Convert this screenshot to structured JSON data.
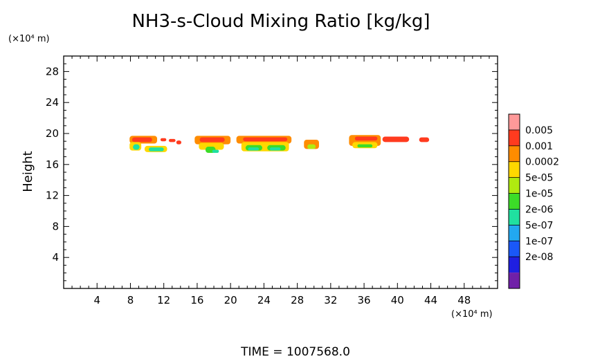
{
  "chart_data": {
    "type": "heatmap",
    "title": "NH3-s-Cloud Mixing Ratio [kg/kg]",
    "ylabel": "Height",
    "x_unit": "(×10⁴ m)",
    "y_unit": "(×10⁴ m)",
    "xlim": [
      0,
      52
    ],
    "ylim": [
      0,
      30
    ],
    "x_ticks": [
      4,
      8,
      12,
      16,
      20,
      24,
      28,
      32,
      36,
      40,
      44,
      48
    ],
    "y_ticks": [
      4,
      8,
      12,
      16,
      20,
      24,
      28
    ],
    "x_minor_step": 1,
    "y_minor_step": 1,
    "footer": "TIME  =  1007568.0",
    "colorbar": {
      "labels": [
        "0.005",
        "0.001",
        "0.0002",
        "5e-05",
        "1e-05",
        "2e-06",
        "5e-07",
        "1e-07",
        "2e-08"
      ],
      "colors": [
        "#ff9999",
        "#ff3b1f",
        "#ff8c00",
        "#ffd800",
        "#b0ea10",
        "#3cdc28",
        "#20e0a0",
        "#22a8f0",
        "#1a58f8",
        "#1f1fe0",
        "#7020a8"
      ]
    },
    "cloud_patches": [
      {
        "x0": 7.9,
        "x1": 11.2,
        "y0": 18.7,
        "y1": 19.7,
        "level": 8
      },
      {
        "x0": 8.2,
        "x1": 10.6,
        "y0": 18.9,
        "y1": 19.5,
        "level": 9
      },
      {
        "x0": 7.9,
        "x1": 9.3,
        "y0": 17.8,
        "y1": 18.9,
        "level": 7
      },
      {
        "x0": 8.3,
        "x1": 9.1,
        "y0": 17.9,
        "y1": 18.6,
        "level": 4
      },
      {
        "x0": 9.7,
        "x1": 12.4,
        "y0": 17.6,
        "y1": 18.4,
        "level": 7
      },
      {
        "x0": 10.2,
        "x1": 12.0,
        "y0": 17.7,
        "y1": 18.2,
        "level": 4
      },
      {
        "x0": 11.6,
        "x1": 12.3,
        "y0": 19.0,
        "y1": 19.4,
        "level": 9
      },
      {
        "x0": 12.6,
        "x1": 13.4,
        "y0": 18.9,
        "y1": 19.3,
        "level": 9
      },
      {
        "x0": 13.5,
        "x1": 14.1,
        "y0": 18.6,
        "y1": 19.1,
        "level": 9
      },
      {
        "x0": 15.7,
        "x1": 20.0,
        "y0": 18.6,
        "y1": 19.7,
        "level": 8
      },
      {
        "x0": 16.3,
        "x1": 19.3,
        "y0": 18.9,
        "y1": 19.5,
        "level": 9
      },
      {
        "x0": 16.2,
        "x1": 19.2,
        "y0": 17.9,
        "y1": 18.8,
        "level": 7
      },
      {
        "x0": 17.0,
        "x1": 18.2,
        "y0": 17.5,
        "y1": 18.3,
        "level": 5
      },
      {
        "x0": 17.8,
        "x1": 18.6,
        "y0": 17.5,
        "y1": 17.9,
        "level": 4
      },
      {
        "x0": 20.7,
        "x1": 27.3,
        "y0": 18.7,
        "y1": 19.7,
        "level": 8
      },
      {
        "x0": 21.5,
        "x1": 26.8,
        "y0": 19.0,
        "y1": 19.5,
        "level": 9
      },
      {
        "x0": 21.3,
        "x1": 27.0,
        "y0": 17.7,
        "y1": 18.9,
        "level": 7
      },
      {
        "x0": 21.8,
        "x1": 23.8,
        "y0": 17.8,
        "y1": 18.5,
        "level": 5
      },
      {
        "x0": 22.1,
        "x1": 23.4,
        "y0": 17.8,
        "y1": 18.2,
        "level": 4
      },
      {
        "x0": 24.4,
        "x1": 26.6,
        "y0": 17.8,
        "y1": 18.5,
        "level": 5
      },
      {
        "x0": 24.7,
        "x1": 26.0,
        "y0": 17.8,
        "y1": 18.2,
        "level": 4
      },
      {
        "x0": 28.8,
        "x1": 30.6,
        "y0": 18.0,
        "y1": 19.2,
        "level": 8
      },
      {
        "x0": 29.2,
        "x1": 30.2,
        "y0": 18.0,
        "y1": 18.6,
        "level": 6
      },
      {
        "x0": 34.2,
        "x1": 38.0,
        "y0": 18.4,
        "y1": 19.8,
        "level": 8
      },
      {
        "x0": 34.9,
        "x1": 37.6,
        "y0": 19.1,
        "y1": 19.6,
        "level": 9
      },
      {
        "x0": 34.6,
        "x1": 37.6,
        "y0": 18.1,
        "y1": 18.9,
        "level": 7
      },
      {
        "x0": 35.2,
        "x1": 37.0,
        "y0": 18.2,
        "y1": 18.6,
        "level": 5
      },
      {
        "x0": 38.2,
        "x1": 41.4,
        "y0": 18.9,
        "y1": 19.6,
        "level": 9
      },
      {
        "x0": 42.6,
        "x1": 43.8,
        "y0": 18.9,
        "y1": 19.5,
        "level": 9
      }
    ]
  }
}
